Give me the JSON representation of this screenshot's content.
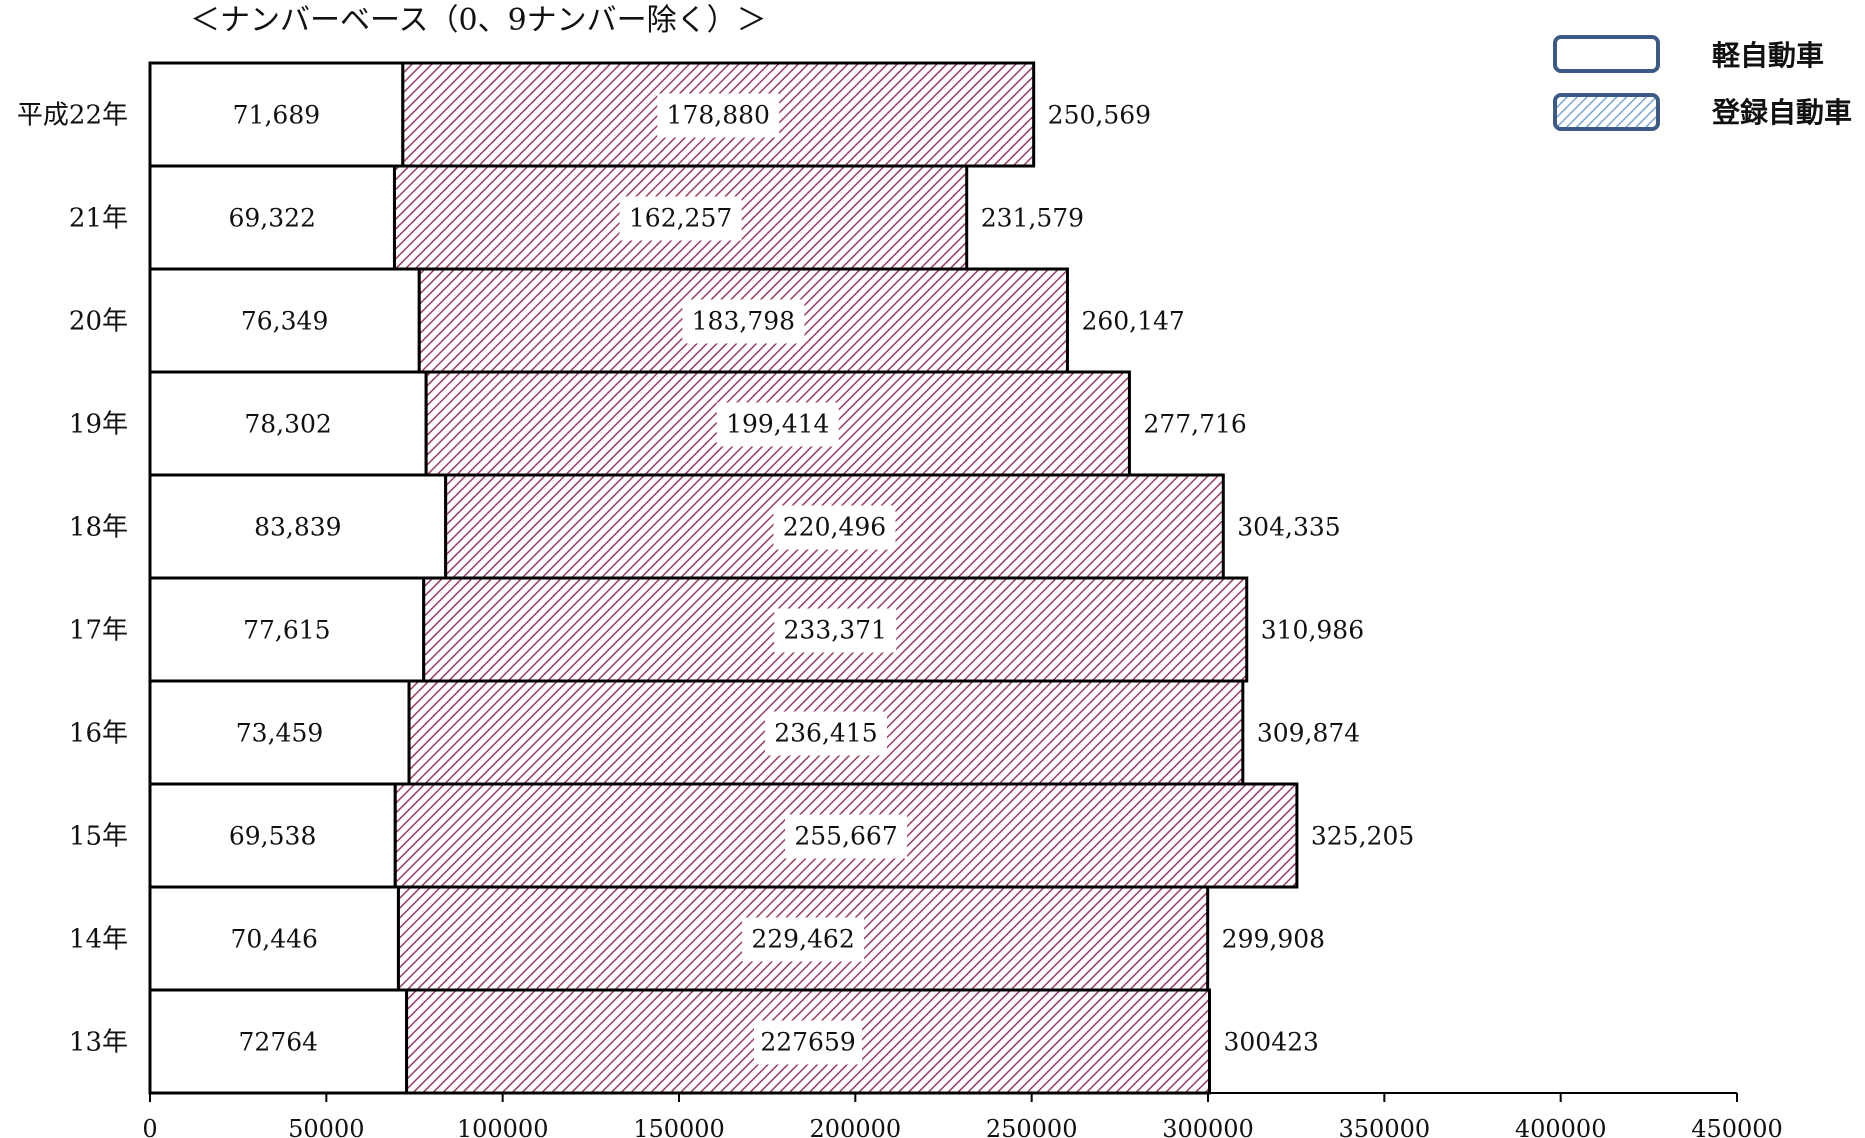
{
  "chart_data": {
    "type": "bar",
    "orientation": "horizontal",
    "stacked": true,
    "title": "＜ナンバーベース（0、9ナンバー除く）＞",
    "categories": [
      "平成22年",
      "21年",
      "20年",
      "19年",
      "18年",
      "17年",
      "16年",
      "15年",
      "14年",
      "13年"
    ],
    "series": [
      {
        "name": "軽自動車",
        "values": [
          71689,
          69322,
          76349,
          78302,
          83839,
          77615,
          73459,
          69538,
          70446,
          72764
        ],
        "value_labels": [
          "71,689",
          "69,322",
          "76,349",
          "78,302",
          "83,839",
          "77,615",
          "73,459",
          "69,538",
          "70,446",
          "72764"
        ],
        "color": "#ffffff"
      },
      {
        "name": "登録自動車",
        "values": [
          178880,
          162257,
          183798,
          199414,
          220496,
          233371,
          236415,
          255667,
          229462,
          227659
        ],
        "value_labels": [
          "178,880",
          "162,257",
          "183,798",
          "199,414",
          "220,496",
          "233,371",
          "236,415",
          "255,667",
          "229,462",
          "227659"
        ],
        "color": "#9b3a6b"
      }
    ],
    "totals": [
      250569,
      231579,
      260147,
      277716,
      304335,
      310986,
      309874,
      325205,
      299908,
      300423
    ],
    "total_labels": [
      "250,569",
      "231,579",
      "260,147",
      "277,716",
      "304,335",
      "310,986",
      "309,874",
      "325,205",
      "299,908",
      "300423"
    ],
    "xlim": [
      0,
      450000
    ],
    "xticks": [
      0,
      50000,
      100000,
      150000,
      200000,
      250000,
      300000,
      350000,
      400000,
      450000
    ],
    "xtick_labels": [
      "0",
      "50000",
      "100000",
      "150000",
      "200000",
      "250000",
      "300000",
      "350000",
      "400000",
      "450000"
    ],
    "grid": false,
    "legend": {
      "position": "top-right",
      "items": [
        {
          "label": "軽自動車",
          "pattern": "plain",
          "border_color": "#3b5b86"
        },
        {
          "label": "登録自動車",
          "pattern": "hatched",
          "border_color": "#3b5b86",
          "hatch_color": "#7aa6d6"
        }
      ]
    }
  }
}
